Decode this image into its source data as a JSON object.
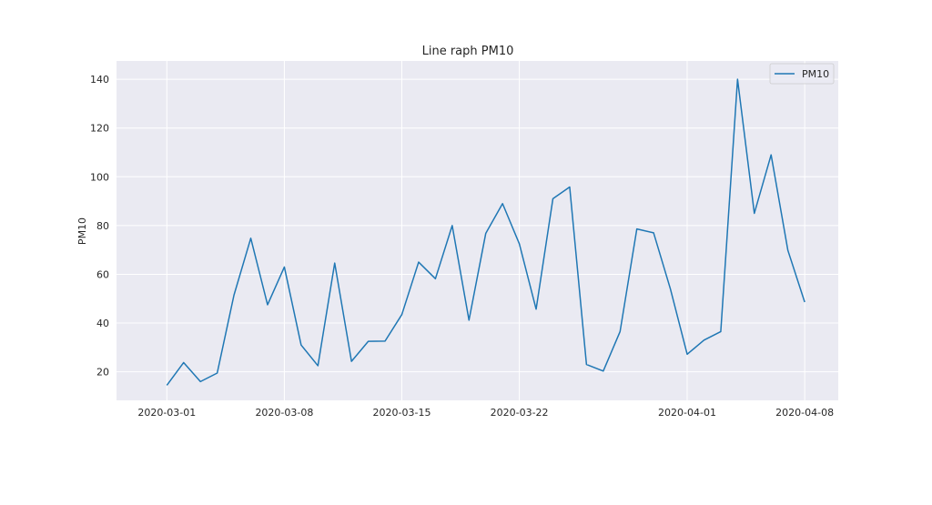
{
  "chart_data": {
    "type": "line",
    "title": "Line raph  PM10",
    "xlabel": "",
    "ylabel": "PM10",
    "x_ticks": [
      "2020-03-01",
      "2020-03-08",
      "2020-03-15",
      "2020-03-22",
      "2020-04-01",
      "2020-04-08"
    ],
    "y_ticks": [
      20,
      40,
      60,
      80,
      100,
      120,
      140
    ],
    "ylim": [
      8.3,
      147.5
    ],
    "xlim": [
      "2020-02-27",
      "2020-04-10"
    ],
    "grid": true,
    "legend_position": "top-right",
    "series": [
      {
        "name": "PM10",
        "color": "#1f77b4",
        "x": [
          "2020-03-01",
          "2020-03-02",
          "2020-03-03",
          "2020-03-04",
          "2020-03-05",
          "2020-03-06",
          "2020-03-07",
          "2020-03-08",
          "2020-03-09",
          "2020-03-10",
          "2020-03-11",
          "2020-03-12",
          "2020-03-13",
          "2020-03-14",
          "2020-03-15",
          "2020-03-16",
          "2020-03-17",
          "2020-03-18",
          "2020-03-19",
          "2020-03-20",
          "2020-03-21",
          "2020-03-22",
          "2020-03-23",
          "2020-03-24",
          "2020-03-25",
          "2020-03-26",
          "2020-03-27",
          "2020-03-28",
          "2020-03-29",
          "2020-03-30",
          "2020-03-31",
          "2020-04-01",
          "2020-04-02",
          "2020-04-03",
          "2020-04-04",
          "2020-04-05",
          "2020-04-06",
          "2020-04-07",
          "2020-04-08"
        ],
        "values": [
          14.5,
          23.8,
          16.0,
          19.5,
          51.5,
          74.8,
          47.5,
          63.0,
          31.0,
          22.5,
          64.6,
          24.3,
          32.5,
          32.6,
          43.5,
          65.0,
          58.2,
          80.0,
          41.2,
          76.8,
          89.0,
          72.5,
          45.7,
          91.0,
          95.8,
          23.0,
          20.3,
          36.5,
          78.6,
          77.0,
          54.0,
          27.2,
          33.0,
          36.5,
          140.0,
          85.0,
          109.0,
          69.8,
          48.6
        ]
      }
    ]
  },
  "legend": {
    "label": "PM10"
  }
}
